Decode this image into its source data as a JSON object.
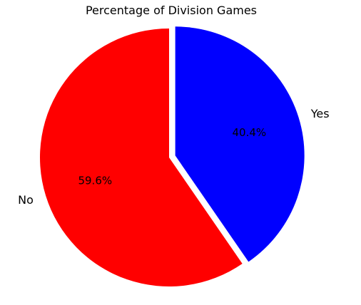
{
  "chart_data": {
    "type": "pie",
    "title": "Percentage of Division Games",
    "slices": [
      {
        "label": "Yes",
        "value": 40.4,
        "pct_label": "40.4%",
        "color": "#0000ff",
        "explode": 0.05
      },
      {
        "label": "No",
        "value": 59.6,
        "pct_label": "59.6%",
        "color": "#ff0000",
        "explode": 0.0
      }
    ],
    "start_angle_deg": 90,
    "direction": "clockwise",
    "legend": "none",
    "grid": false
  }
}
